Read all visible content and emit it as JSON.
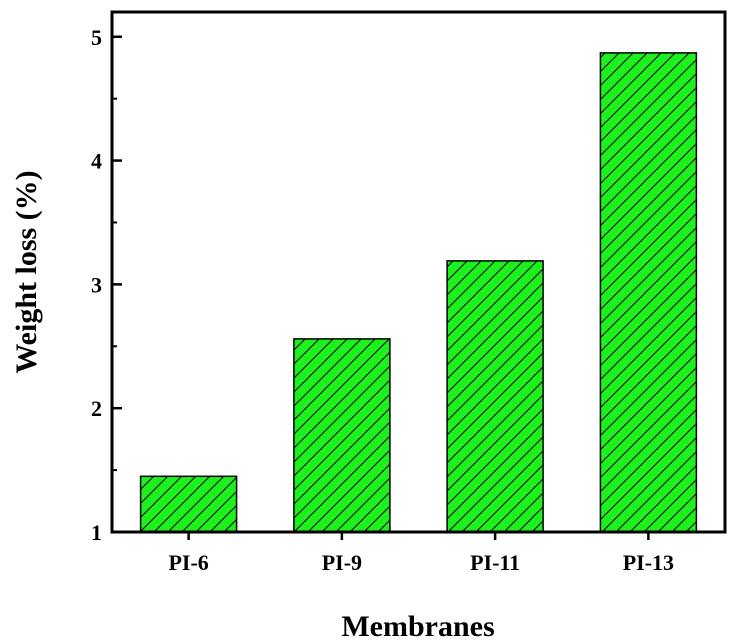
{
  "chart_data": {
    "type": "bar",
    "title": "",
    "xlabel": "Membranes",
    "ylabel": "Weight loss (%)",
    "categories": [
      "PI-6",
      "PI-9",
      "PI-11",
      "PI-13"
    ],
    "values": [
      1.45,
      2.56,
      3.19,
      4.87
    ],
    "ylim": [
      1,
      5.2
    ],
    "yticks": [
      1,
      2,
      3,
      4,
      5
    ],
    "grid": false,
    "legend": "none",
    "bar_fill": "#1ef01e",
    "bar_stroke": "#000000",
    "bar_pattern": "diagonal-hatch"
  }
}
